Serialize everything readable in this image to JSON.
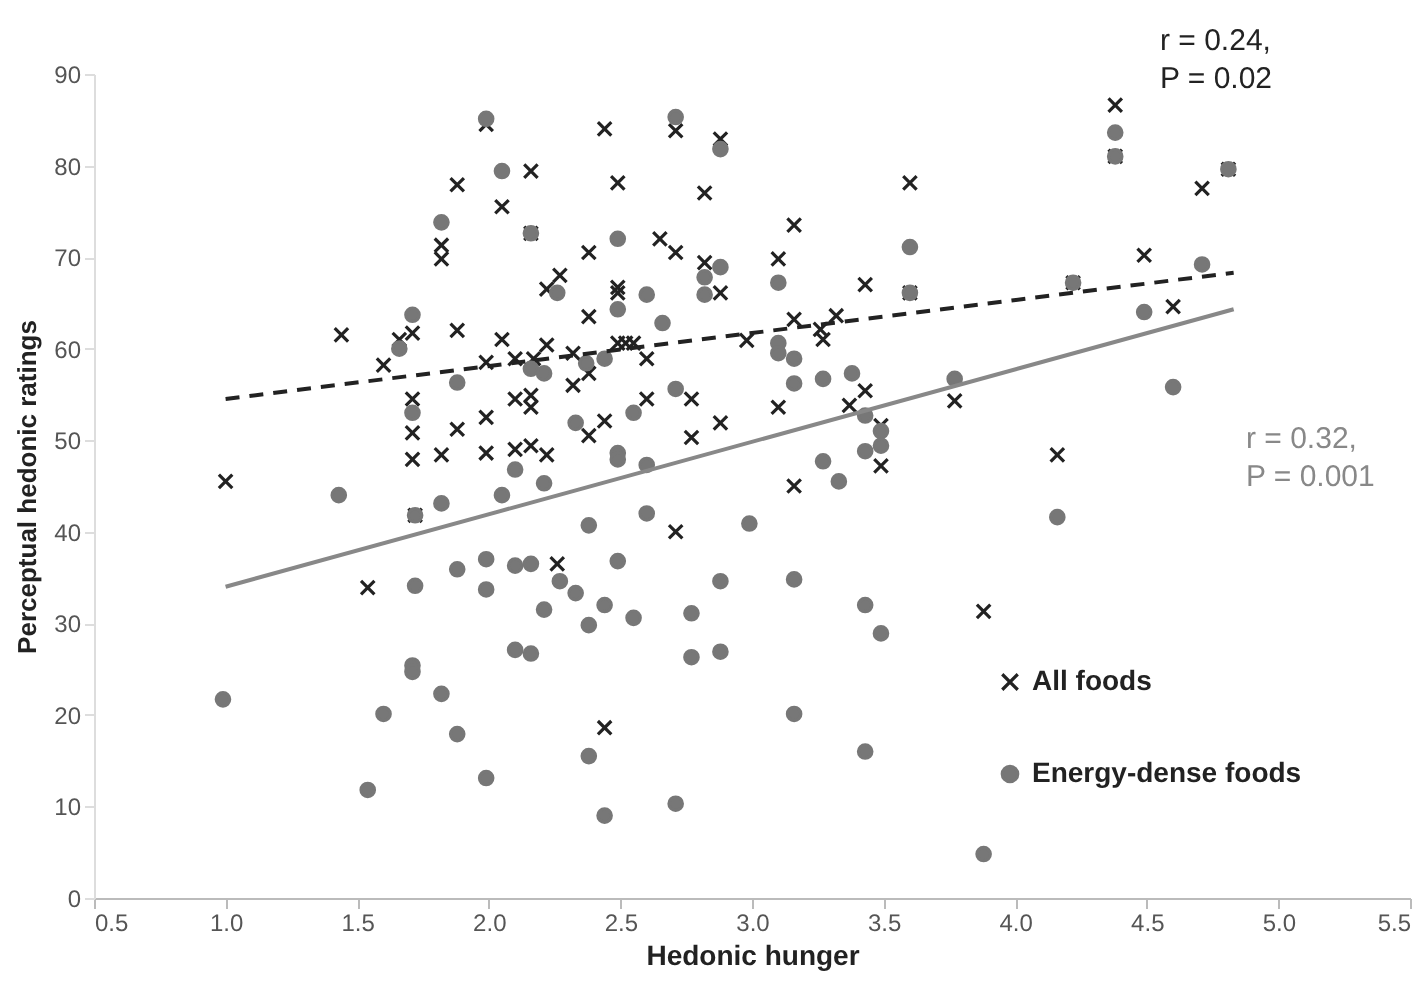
{
  "chart_data": {
    "type": "scatter",
    "xlabel": "Hedonic hunger",
    "ylabel": "Perceptual hedonic ratings",
    "xlim": [
      0.5,
      5.5
    ],
    "ylim": [
      0,
      90
    ],
    "xticks": [
      0.5,
      {
        "value": 1,
        "label": "1.0"
      },
      1.5,
      {
        "value": 2,
        "label": "2.0"
      },
      2.5,
      {
        "value": 3,
        "label": "3.0"
      },
      3.5,
      {
        "value": 4,
        "label": "4.0"
      },
      4.5,
      {
        "value": 5,
        "label": "5.0"
      },
      5.5
    ],
    "yticks": [
      0,
      10,
      20,
      30,
      40,
      50,
      60,
      70,
      80,
      90
    ],
    "legend": "bottom right",
    "annotations": [
      "r = 0.24,\nP = 0.02",
      "r = 0.32,\nP = 0.001"
    ],
    "series": [
      {
        "name": "All foods",
        "color": "#222222",
        "marker": "cross",
        "x": [
          1.0,
          1.44,
          1.54,
          1.99,
          2.16,
          1.88,
          2.05,
          1.82,
          1.82,
          2.16,
          2.22,
          1.66,
          1.71,
          1.88,
          2.05,
          2.22,
          1.6,
          1.99,
          2.1,
          2.17,
          1.71,
          1.71,
          1.71,
          1.88,
          1.99,
          2.1,
          2.16,
          2.16,
          1.82,
          1.99,
          2.1,
          2.16,
          2.22,
          1.72,
          2.26,
          2.71,
          2.44,
          3.16,
          3.49,
          2.44,
          2.71,
          2.88,
          2.49,
          2.82,
          3.6,
          3.16,
          2.38,
          2.65,
          2.71,
          3.1,
          2.82,
          2.27,
          2.49,
          2.49,
          2.88,
          3.43,
          3.6,
          2.38,
          3.16,
          3.32,
          3.26,
          3.27,
          2.98,
          2.32,
          2.38,
          2.32,
          2.49,
          2.52,
          2.55,
          2.6,
          2.6,
          2.77,
          3.1,
          3.37,
          3.43,
          3.49,
          2.44,
          2.38,
          2.88,
          2.77,
          4.38,
          4.38,
          4.71,
          4.81,
          4.22,
          4.49,
          4.6,
          3.77,
          4.16,
          3.88
        ],
        "values": [
          45.5,
          61.5,
          33.9,
          84.5,
          79.4,
          77.9,
          75.5,
          71.3,
          69.8,
          72.6,
          66.5,
          61,
          61.7,
          62,
          61,
          60.4,
          58.2,
          58.5,
          58.9,
          58.9,
          54.5,
          50.8,
          47.9,
          51.2,
          52.5,
          54.5,
          54.9,
          53.6,
          48.4,
          48.6,
          49,
          49.4,
          48.4,
          41.8,
          36.5,
          40,
          18.6,
          45,
          47.2,
          84,
          83.8,
          82.9,
          78.1,
          77,
          78.1,
          73.5,
          70.5,
          72,
          70.5,
          69.8,
          69.4,
          68,
          66.7,
          66.1,
          66.1,
          67,
          66.1,
          63.5,
          63.2,
          63.6,
          62.1,
          61,
          60.9,
          59.5,
          57.3,
          56,
          60.6,
          60.6,
          60.6,
          58.9,
          54.5,
          54.5,
          53.6,
          53.8,
          55.4,
          51.6,
          52.1,
          50.5,
          51.9,
          50.3,
          86.6,
          81,
          77.5,
          79.6,
          67.2,
          70.2,
          64.6,
          54.3,
          48.4,
          31.3
        ]
      },
      {
        "name": "Energy-dense foods",
        "color": "#777777",
        "marker": "circle",
        "x": [
          0.99,
          1.43,
          1.54,
          1.6,
          1.66,
          1.71,
          1.71,
          1.72,
          1.72,
          1.71,
          1.71,
          1.82,
          1.82,
          1.82,
          1.88,
          1.88,
          1.88,
          1.99,
          1.99,
          1.99,
          1.99,
          2.05,
          2.05,
          2.1,
          2.1,
          2.1,
          2.16,
          2.16,
          2.16,
          2.16,
          2.21,
          2.21,
          2.21,
          2.26,
          2.27,
          2.33,
          2.33,
          2.37,
          2.38,
          2.38,
          2.38,
          2.44,
          2.44,
          2.44,
          2.49,
          2.49,
          2.49,
          2.49,
          2.49,
          2.55,
          2.55,
          2.6,
          2.6,
          2.6,
          2.66,
          2.71,
          2.71,
          2.71,
          2.77,
          2.77,
          2.82,
          2.82,
          2.88,
          2.88,
          2.88,
          2.88,
          2.99,
          3.1,
          3.1,
          3.1,
          3.16,
          3.16,
          3.16,
          3.16,
          3.27,
          3.27,
          3.33,
          3.38,
          3.43,
          3.43,
          3.43,
          3.43,
          3.49,
          3.49,
          3.49,
          3.6,
          3.6,
          3.77,
          3.88,
          4.16,
          4.22,
          4.38,
          4.38,
          4.49,
          4.6,
          4.71,
          4.81
        ],
        "values": [
          21.7,
          44,
          11.8,
          20.1,
          60,
          63.7,
          53,
          41.8,
          34.1,
          25.4,
          24.7,
          73.8,
          43.1,
          22.3,
          56.3,
          35.9,
          17.9,
          85.1,
          37,
          33.7,
          13.1,
          79.4,
          44,
          46.8,
          36.3,
          27.1,
          72.6,
          57.8,
          36.5,
          26.7,
          57.3,
          45.3,
          31.5,
          66.1,
          34.6,
          51.9,
          33.3,
          58.4,
          40.7,
          29.8,
          15.5,
          58.9,
          32,
          9,
          72,
          64.3,
          48.6,
          47.9,
          36.8,
          53,
          30.6,
          65.9,
          47.3,
          42,
          62.8,
          85.3,
          55.6,
          10.3,
          31.1,
          26.3,
          67.8,
          65.9,
          81.8,
          68.9,
          34.6,
          26.9,
          40.9,
          67.2,
          60.6,
          59.5,
          58.9,
          56.2,
          34.8,
          20.1,
          56.7,
          47.7,
          45.5,
          57.3,
          52.7,
          48.8,
          32,
          16,
          51,
          49.4,
          28.9,
          71.1,
          66.1,
          56.7,
          4.8,
          41.6,
          67.2,
          83.6,
          81,
          64,
          55.8,
          69.2,
          79.6
        ]
      },
      {
        "type": "line",
        "color": "#222222",
        "line_style": "dashed",
        "x": [
          1.0,
          4.83
        ],
        "values": [
          54.5,
          68.3
        ]
      },
      {
        "type": "line",
        "color": "#888888",
        "line_style": "solid",
        "x": [
          1.0,
          4.83
        ],
        "values": [
          34,
          64.3
        ]
      }
    ]
  }
}
